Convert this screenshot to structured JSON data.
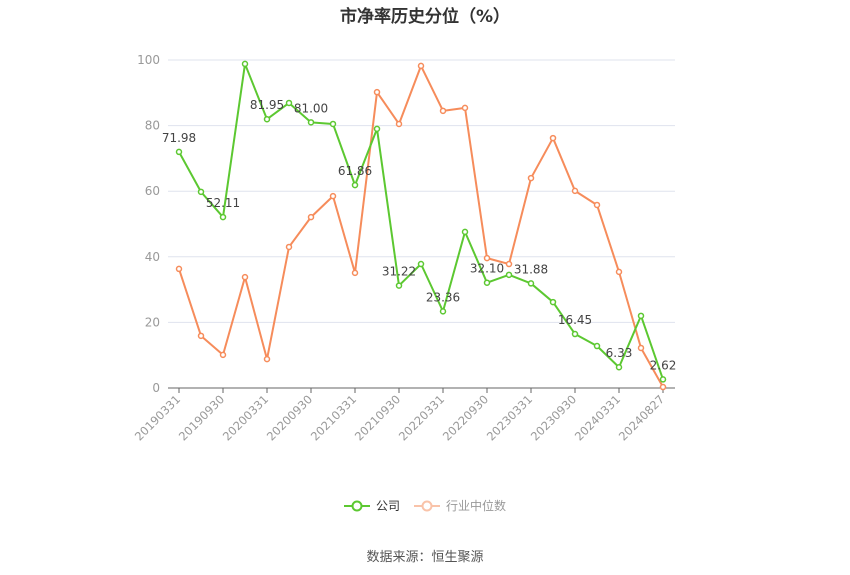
{
  "title": "市净率历史分位（%）",
  "source": "数据来源：恒生聚源",
  "legend": [
    {
      "label": "公司",
      "color": "#5cc831"
    },
    {
      "label": "行业中位数",
      "color": "#f68c5b"
    }
  ],
  "chart_data": {
    "type": "line",
    "title": "市净率历史分位（%）",
    "xlabel": "",
    "ylabel": "",
    "ylim": [
      0,
      100
    ],
    "yticks": [
      0,
      20,
      40,
      60,
      80,
      100
    ],
    "grid": true,
    "legend_position": "bottom",
    "x": [
      "20190331",
      "20190630",
      "20190930",
      "20191231",
      "20200331",
      "20200630",
      "20200930",
      "20201231",
      "20210331",
      "20210630",
      "20210930",
      "20211231",
      "20220331",
      "20220630",
      "20220930",
      "20221231",
      "20230331",
      "20230630",
      "20230930",
      "20231231",
      "20240331",
      "20240630",
      "20240827"
    ],
    "xtick_labels": [
      "20190331",
      "20190930",
      "20200331",
      "20200930",
      "20210331",
      "20210930",
      "20220331",
      "20220930",
      "20230331",
      "20230930",
      "20240331",
      "20240827"
    ],
    "series": [
      {
        "name": "公司",
        "color": "#5cc831",
        "values": [
          71.98,
          59.8,
          52.11,
          98.8,
          81.95,
          86.9,
          81.0,
          80.5,
          61.86,
          79.0,
          31.22,
          37.8,
          23.36,
          47.6,
          32.1,
          34.5,
          31.88,
          26.2,
          16.45,
          12.8,
          6.33,
          22.0,
          2.62
        ],
        "labels": {
          "0": "71.98",
          "2": "52.11",
          "4": "81.95",
          "6": "81.00",
          "8": "61.86",
          "10": "31.22",
          "12": "23.36",
          "14": "32.10",
          "16": "31.88",
          "18": "16.45",
          "20": "6.33",
          "22": "2.62"
        }
      },
      {
        "name": "行业中位数",
        "color": "#f68c5b",
        "values": [
          36.3,
          15.9,
          10.1,
          33.8,
          8.8,
          43.0,
          52.1,
          58.5,
          35.1,
          90.2,
          80.5,
          98.2,
          84.5,
          85.4,
          39.6,
          37.8,
          64.0,
          76.2,
          60.1,
          55.8,
          35.4,
          12.2,
          0.3
        ]
      }
    ]
  }
}
